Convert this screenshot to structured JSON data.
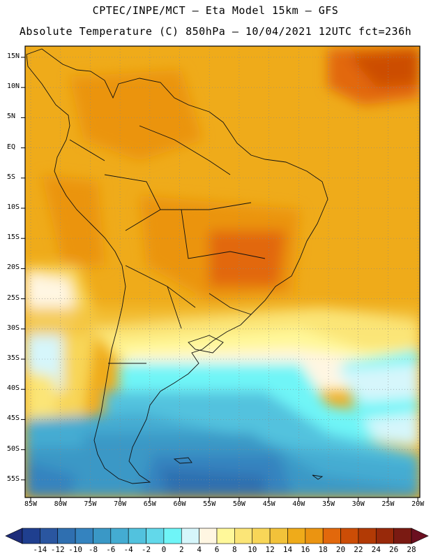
{
  "header": {
    "line1": "CPTEC/INPE/MCT –  Eta Model 15km – GFS",
    "line2": "Absolute Temperature (C) 850hPa – 10/04/2021 12UTC fct=236h"
  },
  "map": {
    "lat_labels": [
      "15N",
      "10N",
      "5N",
      "EQ",
      "5S",
      "10S",
      "15S",
      "20S",
      "25S",
      "30S",
      "35S",
      "40S",
      "45S",
      "50S",
      "55S"
    ],
    "lon_labels": [
      "85W",
      "80W",
      "75W",
      "70W",
      "65W",
      "60W",
      "55W",
      "50W",
      "45W",
      "40W",
      "35W",
      "30W",
      "25W",
      "20W"
    ]
  },
  "colorbar": {
    "labels": [
      "-14",
      "-12",
      "-10",
      "-8",
      "-6",
      "-4",
      "-2",
      "0",
      "2",
      "4",
      "6",
      "8",
      "10",
      "12",
      "14",
      "16",
      "18",
      "20",
      "22",
      "24",
      "26",
      "28"
    ],
    "colors": [
      "#1f3f8f",
      "#2a56a0",
      "#2f6fb0",
      "#3483bf",
      "#3a98c6",
      "#44acd2",
      "#52c2de",
      "#62d8ea",
      "#6ff5f7",
      "#d6f6fb",
      "#fff6e2",
      "#fff89a",
      "#fbe577",
      "#f8d658",
      "#f2c23a",
      "#efab1a",
      "#eb9411",
      "#e2680c",
      "#cc4d06",
      "#b23a05",
      "#98290a",
      "#7a1a12"
    ],
    "below_color": "#1d2c7a",
    "above_color": "#6b0f20"
  }
}
